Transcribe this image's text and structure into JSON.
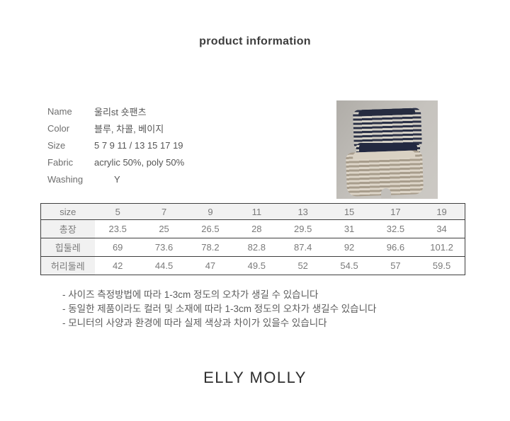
{
  "title": "product information",
  "details": {
    "rows": [
      {
        "label": "Name",
        "value": "울리st 숏팬츠"
      },
      {
        "label": "Color",
        "value": "블루, 차콜, 베이지"
      },
      {
        "label": "Size",
        "value": "5 7 9 11  / 13 15 17 19"
      },
      {
        "label": "Fabric",
        "value": "acrylic 50%, poly 50%"
      },
      {
        "label": "Washing",
        "value": "Y"
      }
    ]
  },
  "photo": {
    "description": "stacked striped kids shorts in charcoal, blue and beige on a gray backdrop",
    "colors": {
      "background": "#c1beb9",
      "navy": "#2b3147",
      "stripe_light": "#d4d0c6",
      "beige_stripe": "#a89d8c",
      "beige_light": "#ddd5c8"
    }
  },
  "size_table": {
    "header": [
      "size",
      "5",
      "7",
      "9",
      "11",
      "13",
      "15",
      "17",
      "19"
    ],
    "rows": [
      {
        "label": "총장",
        "values": [
          "23.5",
          "25",
          "26.5",
          "28",
          "29.5",
          "31",
          "32.5",
          "34"
        ]
      },
      {
        "label": "힙둘레",
        "values": [
          "69",
          "73.6",
          "78.2",
          "82.8",
          "87.4",
          "92",
          "96.6",
          "101.2"
        ]
      },
      {
        "label": "허리둘레",
        "values": [
          "42",
          "44.5",
          "47",
          "49.5",
          "52",
          "54.5",
          "57",
          "59.5"
        ]
      }
    ]
  },
  "notes": [
    "- 사이즈 측정방법에 따라 1-3cm 정도의 오차가 생길 수 있습니다",
    "- 동일한 제품이라도 컬러 및 소재에 따라 1-3cm 정도의 오차가 생길수 있습니다",
    "- 모니터의 사양과 환경에 따라 실제 색상과 차이가 있을수 있습니다"
  ],
  "footer": {
    "brand": "ELLY MOLLY"
  },
  "colors": {
    "title_text": "#3d3d3d",
    "label_text": "#6e6e6e",
    "table_border": "#3e3e3e",
    "table_header_bg": "#f1f1f1",
    "table_text": "#7a7a7a"
  }
}
